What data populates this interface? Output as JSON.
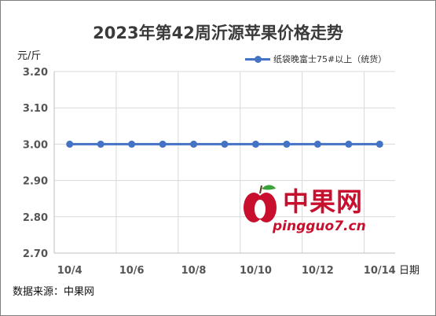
{
  "title": "2023年第42周沂源苹果价格走势",
  "unit_label": "元/斤",
  "legend_label": "纸袋晚富士75#以上（统货）",
  "source_text": "数据来源：中果网",
  "watermark": {
    "brand_cn": "中果网",
    "brand_en": "pingguo7.cn"
  },
  "colors": {
    "series": "#4472c4",
    "grid": "#d9d9d9",
    "watermark": "#c8102e"
  },
  "chart_data": {
    "type": "line",
    "title": "2023年第42周沂源苹果价格走势",
    "ylabel": "元/斤",
    "xlabel": "日期",
    "ylim": [
      2.7,
      3.2
    ],
    "yticks": [
      "3.20",
      "3.10",
      "3.00",
      "2.90",
      "2.80",
      "2.70"
    ],
    "x": [
      "10/4",
      "10/5",
      "10/6",
      "10/7",
      "10/8",
      "10/9",
      "10/10",
      "10/11",
      "10/12",
      "10/13",
      "10/14"
    ],
    "xtick_labels": [
      "10/4",
      "10/6",
      "10/8",
      "10/10",
      "10/12",
      "10/14"
    ],
    "series": [
      {
        "name": "纸袋晚富士75#以上（统货）",
        "values": [
          3.0,
          3.0,
          3.0,
          3.0,
          3.0,
          3.0,
          3.0,
          3.0,
          3.0,
          3.0,
          3.0
        ]
      }
    ],
    "grid": true,
    "legend": "top-right"
  }
}
